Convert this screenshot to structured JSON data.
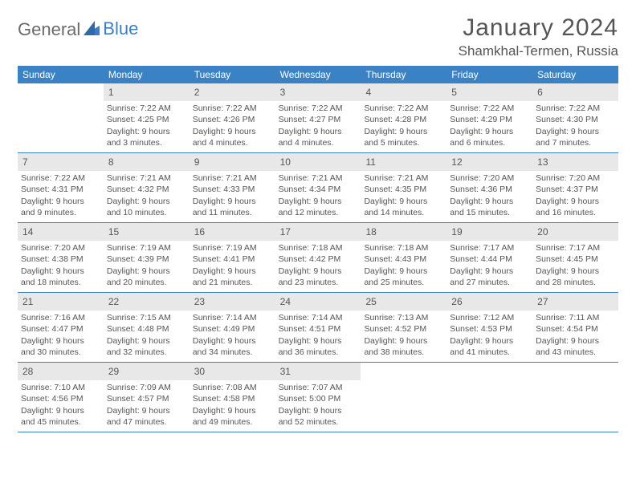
{
  "logo": {
    "text_general": "General",
    "text_blue": "Blue"
  },
  "header": {
    "month_title": "January 2024",
    "location": "Shamkhal-Termen, Russia"
  },
  "colors": {
    "header_bg": "#3b82c4",
    "daynum_bg": "#e8e8e8",
    "text": "#555555",
    "logo_gray": "#6b6b6b",
    "logo_blue": "#3b7fc4",
    "border": "#3b82c4"
  },
  "day_names": [
    "Sunday",
    "Monday",
    "Tuesday",
    "Wednesday",
    "Thursday",
    "Friday",
    "Saturday"
  ],
  "weeks": [
    [
      null,
      {
        "n": "1",
        "sr": "Sunrise: 7:22 AM",
        "ss": "Sunset: 4:25 PM",
        "d1": "Daylight: 9 hours",
        "d2": "and 3 minutes."
      },
      {
        "n": "2",
        "sr": "Sunrise: 7:22 AM",
        "ss": "Sunset: 4:26 PM",
        "d1": "Daylight: 9 hours",
        "d2": "and 4 minutes."
      },
      {
        "n": "3",
        "sr": "Sunrise: 7:22 AM",
        "ss": "Sunset: 4:27 PM",
        "d1": "Daylight: 9 hours",
        "d2": "and 4 minutes."
      },
      {
        "n": "4",
        "sr": "Sunrise: 7:22 AM",
        "ss": "Sunset: 4:28 PM",
        "d1": "Daylight: 9 hours",
        "d2": "and 5 minutes."
      },
      {
        "n": "5",
        "sr": "Sunrise: 7:22 AM",
        "ss": "Sunset: 4:29 PM",
        "d1": "Daylight: 9 hours",
        "d2": "and 6 minutes."
      },
      {
        "n": "6",
        "sr": "Sunrise: 7:22 AM",
        "ss": "Sunset: 4:30 PM",
        "d1": "Daylight: 9 hours",
        "d2": "and 7 minutes."
      }
    ],
    [
      {
        "n": "7",
        "sr": "Sunrise: 7:22 AM",
        "ss": "Sunset: 4:31 PM",
        "d1": "Daylight: 9 hours",
        "d2": "and 9 minutes."
      },
      {
        "n": "8",
        "sr": "Sunrise: 7:21 AM",
        "ss": "Sunset: 4:32 PM",
        "d1": "Daylight: 9 hours",
        "d2": "and 10 minutes."
      },
      {
        "n": "9",
        "sr": "Sunrise: 7:21 AM",
        "ss": "Sunset: 4:33 PM",
        "d1": "Daylight: 9 hours",
        "d2": "and 11 minutes."
      },
      {
        "n": "10",
        "sr": "Sunrise: 7:21 AM",
        "ss": "Sunset: 4:34 PM",
        "d1": "Daylight: 9 hours",
        "d2": "and 12 minutes."
      },
      {
        "n": "11",
        "sr": "Sunrise: 7:21 AM",
        "ss": "Sunset: 4:35 PM",
        "d1": "Daylight: 9 hours",
        "d2": "and 14 minutes."
      },
      {
        "n": "12",
        "sr": "Sunrise: 7:20 AM",
        "ss": "Sunset: 4:36 PM",
        "d1": "Daylight: 9 hours",
        "d2": "and 15 minutes."
      },
      {
        "n": "13",
        "sr": "Sunrise: 7:20 AM",
        "ss": "Sunset: 4:37 PM",
        "d1": "Daylight: 9 hours",
        "d2": "and 16 minutes."
      }
    ],
    [
      {
        "n": "14",
        "sr": "Sunrise: 7:20 AM",
        "ss": "Sunset: 4:38 PM",
        "d1": "Daylight: 9 hours",
        "d2": "and 18 minutes."
      },
      {
        "n": "15",
        "sr": "Sunrise: 7:19 AM",
        "ss": "Sunset: 4:39 PM",
        "d1": "Daylight: 9 hours",
        "d2": "and 20 minutes."
      },
      {
        "n": "16",
        "sr": "Sunrise: 7:19 AM",
        "ss": "Sunset: 4:41 PM",
        "d1": "Daylight: 9 hours",
        "d2": "and 21 minutes."
      },
      {
        "n": "17",
        "sr": "Sunrise: 7:18 AM",
        "ss": "Sunset: 4:42 PM",
        "d1": "Daylight: 9 hours",
        "d2": "and 23 minutes."
      },
      {
        "n": "18",
        "sr": "Sunrise: 7:18 AM",
        "ss": "Sunset: 4:43 PM",
        "d1": "Daylight: 9 hours",
        "d2": "and 25 minutes."
      },
      {
        "n": "19",
        "sr": "Sunrise: 7:17 AM",
        "ss": "Sunset: 4:44 PM",
        "d1": "Daylight: 9 hours",
        "d2": "and 27 minutes."
      },
      {
        "n": "20",
        "sr": "Sunrise: 7:17 AM",
        "ss": "Sunset: 4:45 PM",
        "d1": "Daylight: 9 hours",
        "d2": "and 28 minutes."
      }
    ],
    [
      {
        "n": "21",
        "sr": "Sunrise: 7:16 AM",
        "ss": "Sunset: 4:47 PM",
        "d1": "Daylight: 9 hours",
        "d2": "and 30 minutes."
      },
      {
        "n": "22",
        "sr": "Sunrise: 7:15 AM",
        "ss": "Sunset: 4:48 PM",
        "d1": "Daylight: 9 hours",
        "d2": "and 32 minutes."
      },
      {
        "n": "23",
        "sr": "Sunrise: 7:14 AM",
        "ss": "Sunset: 4:49 PM",
        "d1": "Daylight: 9 hours",
        "d2": "and 34 minutes."
      },
      {
        "n": "24",
        "sr": "Sunrise: 7:14 AM",
        "ss": "Sunset: 4:51 PM",
        "d1": "Daylight: 9 hours",
        "d2": "and 36 minutes."
      },
      {
        "n": "25",
        "sr": "Sunrise: 7:13 AM",
        "ss": "Sunset: 4:52 PM",
        "d1": "Daylight: 9 hours",
        "d2": "and 38 minutes."
      },
      {
        "n": "26",
        "sr": "Sunrise: 7:12 AM",
        "ss": "Sunset: 4:53 PM",
        "d1": "Daylight: 9 hours",
        "d2": "and 41 minutes."
      },
      {
        "n": "27",
        "sr": "Sunrise: 7:11 AM",
        "ss": "Sunset: 4:54 PM",
        "d1": "Daylight: 9 hours",
        "d2": "and 43 minutes."
      }
    ],
    [
      {
        "n": "28",
        "sr": "Sunrise: 7:10 AM",
        "ss": "Sunset: 4:56 PM",
        "d1": "Daylight: 9 hours",
        "d2": "and 45 minutes."
      },
      {
        "n": "29",
        "sr": "Sunrise: 7:09 AM",
        "ss": "Sunset: 4:57 PM",
        "d1": "Daylight: 9 hours",
        "d2": "and 47 minutes."
      },
      {
        "n": "30",
        "sr": "Sunrise: 7:08 AM",
        "ss": "Sunset: 4:58 PM",
        "d1": "Daylight: 9 hours",
        "d2": "and 49 minutes."
      },
      {
        "n": "31",
        "sr": "Sunrise: 7:07 AM",
        "ss": "Sunset: 5:00 PM",
        "d1": "Daylight: 9 hours",
        "d2": "and 52 minutes."
      },
      null,
      null,
      null
    ]
  ]
}
